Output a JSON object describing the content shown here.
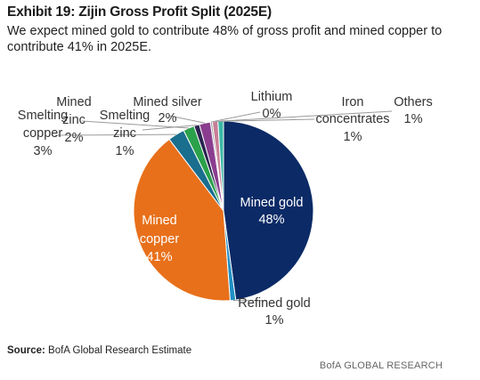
{
  "title": "Exhibit 19: Zijin Gross Profit Split (2025E)",
  "subtitle": "We expect mined gold to contribute 48% of gross profit and mined copper to contribute 41% in 2025E.",
  "source_label": "Source:",
  "source_text": "BofA Global Research Estimate",
  "brand": "BofA GLOBAL RESEARCH",
  "chart_data": {
    "type": "pie",
    "unit": "%",
    "slices": [
      {
        "label": "Mined gold",
        "value": 48,
        "value_label": "48%",
        "color": "#0b2a66"
      },
      {
        "label": "Refined gold",
        "value": 1,
        "value_label": "1%",
        "color": "#1f8fc4"
      },
      {
        "label": "Mined copper",
        "value": 41,
        "value_label": "41%",
        "color": "#e8701a"
      },
      {
        "label": "Smelting copper",
        "value": 3,
        "value_label": "3%",
        "color": "#1a6e8e"
      },
      {
        "label": "Mined zinc",
        "value": 2,
        "value_label": "2%",
        "color": "#2aa14a"
      },
      {
        "label": "Smelting zinc",
        "value": 1,
        "value_label": "1%",
        "color": "#2b2450"
      },
      {
        "label": "Mined silver",
        "value": 2,
        "value_label": "2%",
        "color": "#8a3d8f"
      },
      {
        "label": "Lithium",
        "value": 0,
        "value_label": "0%",
        "color": "#9c9c9c"
      },
      {
        "label": "Iron concentrates",
        "value": 1,
        "value_label": "1%",
        "color": "#c77e96"
      },
      {
        "label": "Others",
        "value": 1,
        "value_label": "1%",
        "color": "#3bb8a6"
      }
    ]
  }
}
